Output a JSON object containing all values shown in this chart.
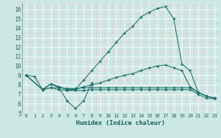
{
  "xlabel": "Humidex (Indice chaleur)",
  "bg_color": "#cce8e5",
  "grid_color": "#b0d8d4",
  "line_color": "#1a6e68",
  "xlim": [
    -0.5,
    23.5
  ],
  "ylim": [
    5,
    16.7
  ],
  "xticks": [
    0,
    1,
    2,
    3,
    4,
    5,
    6,
    7,
    8,
    9,
    10,
    11,
    12,
    13,
    14,
    15,
    16,
    17,
    18,
    19,
    20,
    21,
    22,
    23
  ],
  "yticks": [
    5,
    6,
    7,
    8,
    9,
    10,
    11,
    12,
    13,
    14,
    15,
    16
  ],
  "series": [
    {
      "x": [
        0,
        1,
        2,
        3,
        4,
        5,
        6,
        7,
        8
      ],
      "y": [
        9.0,
        8.9,
        7.5,
        8.1,
        7.7,
        6.3,
        5.5,
        6.3,
        8.2
      ]
    },
    {
      "x": [
        0,
        2,
        3,
        4,
        5,
        6,
        7,
        8,
        9,
        10,
        11,
        12,
        13,
        14,
        15,
        16,
        17,
        18,
        19,
        20,
        21,
        22,
        23
      ],
      "y": [
        9.0,
        7.5,
        8.1,
        7.8,
        7.5,
        7.5,
        8.5,
        9.5,
        10.5,
        11.5,
        12.5,
        13.5,
        14.2,
        15.2,
        15.7,
        16.1,
        16.3,
        15.0,
        10.2,
        9.5,
        7.2,
        6.8,
        6.6
      ]
    },
    {
      "x": [
        0,
        2,
        3,
        4,
        5,
        6,
        7,
        8,
        9,
        10,
        11,
        12,
        13,
        14,
        15,
        16,
        17,
        18,
        19,
        20,
        21,
        22,
        23
      ],
      "y": [
        9.0,
        7.5,
        8.1,
        7.8,
        7.5,
        7.5,
        7.8,
        8.0,
        8.2,
        8.5,
        8.8,
        9.0,
        9.2,
        9.5,
        9.8,
        10.0,
        10.1,
        9.8,
        9.5,
        7.8,
        7.2,
        6.8,
        6.6
      ]
    },
    {
      "x": [
        0,
        2,
        3,
        4,
        5,
        6,
        7,
        8,
        9,
        10,
        11,
        12,
        13,
        14,
        15,
        16,
        17,
        18,
        19,
        20,
        21,
        22,
        23
      ],
      "y": [
        9.0,
        7.5,
        7.7,
        7.7,
        7.6,
        7.6,
        7.7,
        7.7,
        7.7,
        7.7,
        7.7,
        7.7,
        7.7,
        7.7,
        7.7,
        7.7,
        7.7,
        7.7,
        7.7,
        7.7,
        7.2,
        6.8,
        6.6
      ]
    },
    {
      "x": [
        2,
        3,
        4,
        5,
        6,
        7,
        8,
        9,
        10,
        11,
        12,
        13,
        14,
        15,
        16,
        17,
        18,
        19,
        20,
        21,
        22,
        23
      ],
      "y": [
        7.5,
        7.7,
        7.5,
        7.4,
        7.4,
        7.4,
        7.5,
        7.5,
        7.5,
        7.5,
        7.5,
        7.5,
        7.5,
        7.5,
        7.5,
        7.5,
        7.5,
        7.5,
        7.5,
        7.0,
        6.6,
        6.5
      ]
    }
  ]
}
